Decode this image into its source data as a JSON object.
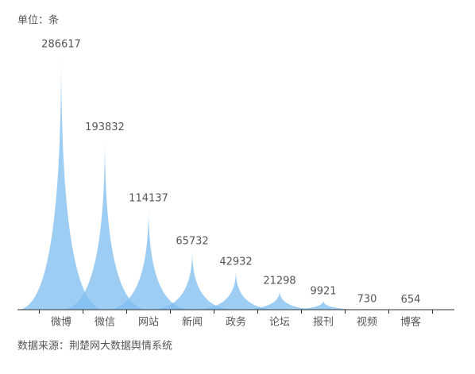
{
  "chart_data": {
    "type": "pictorial-spike",
    "unit_label": "单位：条",
    "source": "数据来源：荆楚网大数据舆情系统",
    "categories": [
      "微博",
      "微信",
      "网站",
      "新闻",
      "政务",
      "论坛",
      "报刊",
      "视频",
      "博客"
    ],
    "values": [
      286617,
      193832,
      114137,
      65732,
      42932,
      21298,
      9921,
      730,
      654
    ],
    "color": "#7dbcf0",
    "ylim": [
      0,
      300000
    ]
  }
}
